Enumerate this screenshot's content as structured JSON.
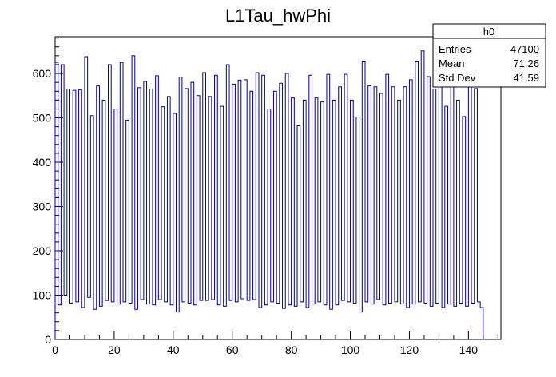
{
  "chart_data": {
    "type": "bar",
    "title": "L1Tau_hwPhi",
    "xlabel": "",
    "ylabel": "",
    "xlim": [
      0,
      151
    ],
    "ylim": [
      0,
      683
    ],
    "x_ticks": [
      0,
      20,
      40,
      60,
      80,
      100,
      120,
      140
    ],
    "y_ticks": [
      0,
      100,
      200,
      300,
      400,
      500,
      600
    ],
    "bin_width": 1,
    "bin_start": 0,
    "values": [
      625,
      78,
      620,
      100,
      565,
      82,
      562,
      85,
      563,
      72,
      638,
      95,
      505,
      68,
      572,
      75,
      540,
      88,
      620,
      85,
      520,
      80,
      625,
      85,
      495,
      82,
      640,
      68,
      568,
      90,
      582,
      80,
      565,
      78,
      595,
      90,
      525,
      85,
      548,
      78,
      510,
      62,
      592,
      85,
      566,
      82,
      580,
      78,
      550,
      88,
      602,
      88,
      548,
      90,
      596,
      78,
      526,
      75,
      620,
      88,
      576,
      85,
      585,
      92,
      586,
      88,
      560,
      90,
      602,
      72,
      596,
      78,
      520,
      85,
      560,
      82,
      578,
      70,
      600,
      78,
      545,
      75,
      482,
      85,
      540,
      72,
      596,
      80,
      545,
      85,
      536,
      78,
      598,
      68,
      540,
      78,
      570,
      88,
      598,
      85,
      540,
      82,
      502,
      62,
      628,
      85,
      572,
      80,
      570,
      90,
      555,
      78,
      598,
      82,
      570,
      85,
      540,
      80,
      570,
      72,
      586,
      80,
      628,
      85,
      651,
      82,
      593,
      75,
      565,
      82,
      596,
      72,
      526,
      80,
      600,
      75,
      540,
      82,
      503,
      75,
      608,
      82,
      566,
      85,
      72,
      0
    ],
    "line_color": "#000099",
    "legend": "none",
    "grid": false
  },
  "stats_box": {
    "title": "h0",
    "rows": [
      {
        "label": "Entries",
        "value": "47100"
      },
      {
        "label": "Mean",
        "value": "71.26"
      },
      {
        "label": "Std Dev",
        "value": "41.59"
      }
    ],
    "placement": "top-right"
  }
}
